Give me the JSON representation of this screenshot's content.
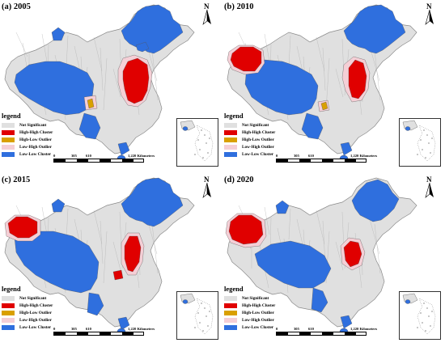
{
  "panels": [
    {
      "title": "(a) 2005"
    },
    {
      "title": "(b) 2010"
    },
    {
      "title": "(c) 2015"
    },
    {
      "title": "(d) 2020"
    }
  ],
  "legend": {
    "title": "legend",
    "items": [
      {
        "label": "Not Significant",
        "color": "#e0e0e0"
      },
      {
        "label": "High-High Cluster",
        "color": "#e00000"
      },
      {
        "label": "High-Low Outlier",
        "color": "#d9a000"
      },
      {
        "label": "Low-High Outlier",
        "color": "#f5cfd6"
      },
      {
        "label": "Low-Low Cluster",
        "color": "#2f6fde"
      }
    ]
  },
  "scale": {
    "ticks": [
      "0",
      "305",
      "610",
      "1,220 Kilometers"
    ]
  },
  "north_label": "N"
}
